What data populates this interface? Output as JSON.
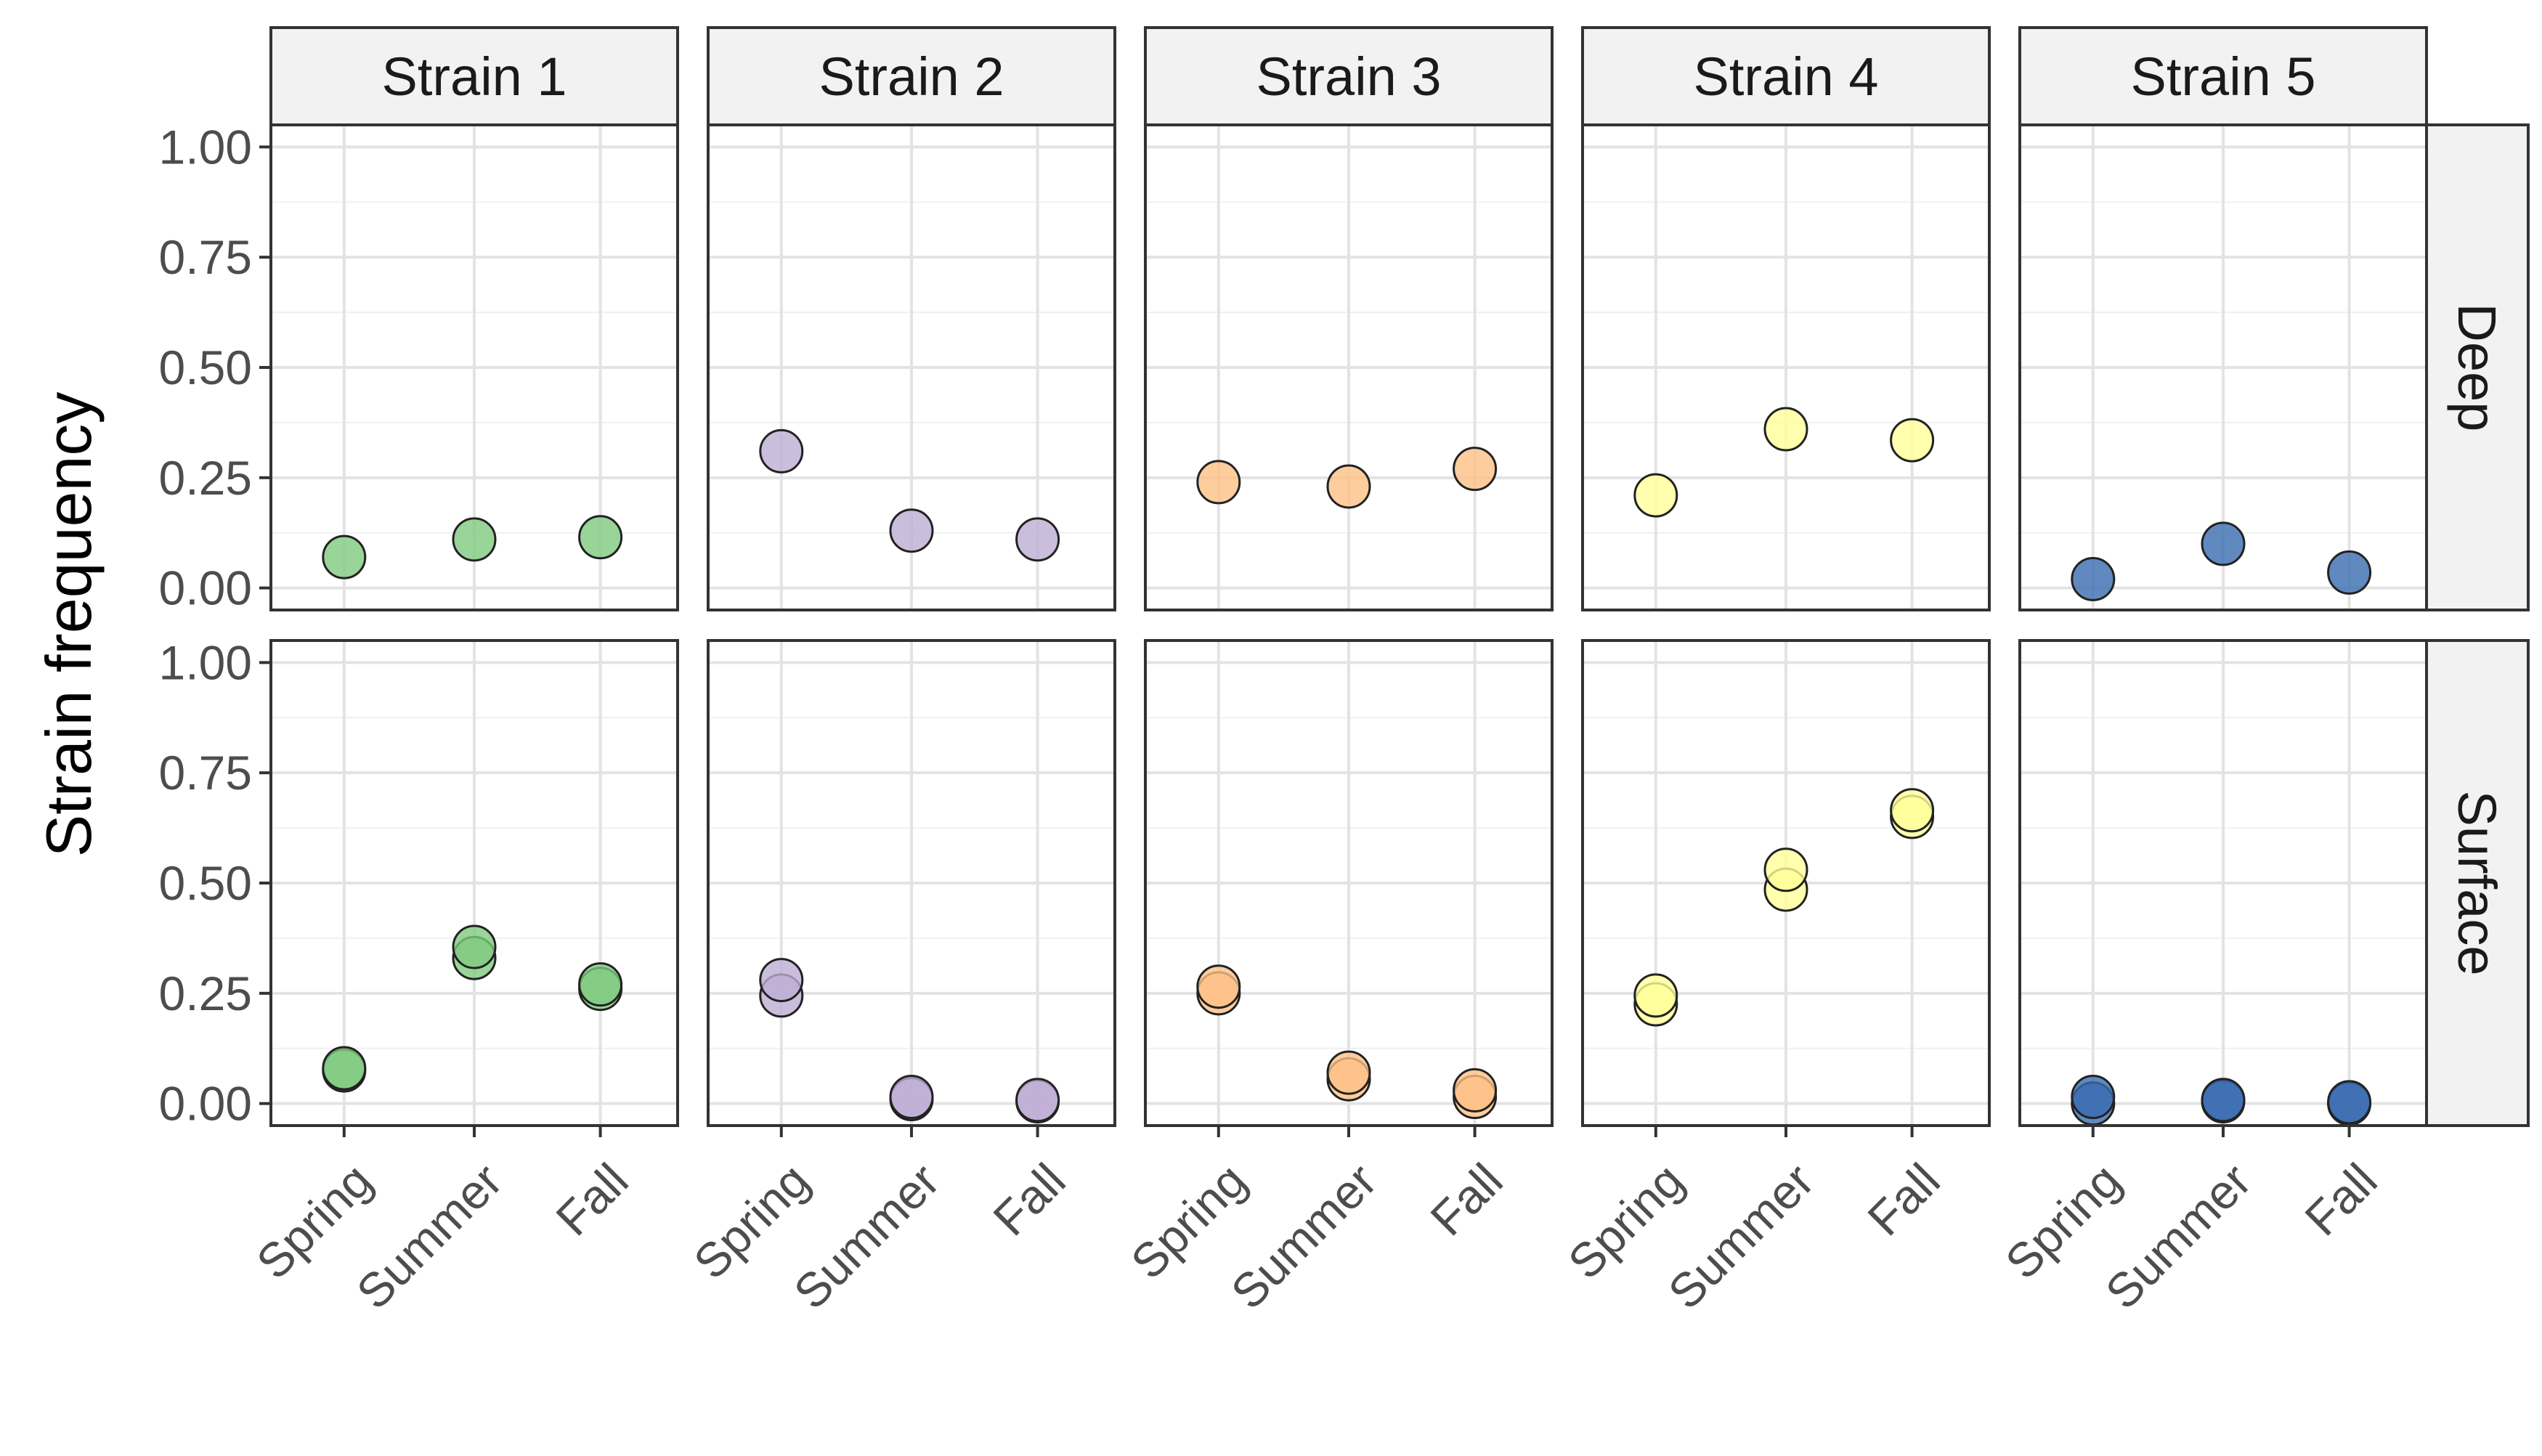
{
  "chart_data": {
    "type": "scatter",
    "facets": {
      "columns": [
        "Strain 1",
        "Strain 2",
        "Strain 3",
        "Strain 4",
        "Strain 5"
      ],
      "rows": [
        "Deep",
        "Surface"
      ]
    },
    "xlabel": "",
    "ylabel": "Strain frequency",
    "categories": [
      "Spring",
      "Summer",
      "Fall"
    ],
    "ylim": [
      -0.05,
      1.05
    ],
    "yticks": [
      "0.00",
      "0.25",
      "0.50",
      "0.75",
      "1.00"
    ],
    "ytick_values": [
      0,
      0.25,
      0.5,
      0.75,
      1.0
    ],
    "grid": true,
    "legend": "none",
    "colors": {
      "Strain 1": "#7fc97f",
      "Strain 2": "#beaed4",
      "Strain 3": "#fdc086",
      "Strain 4": "#ffff99",
      "Strain 5": "#386cb0"
    },
    "points": {
      "Deep": {
        "Strain 1": {
          "Spring": [
            0.07
          ],
          "Summer": [
            0.11
          ],
          "Fall": [
            0.115
          ]
        },
        "Strain 2": {
          "Spring": [
            0.31
          ],
          "Summer": [
            0.13
          ],
          "Fall": [
            0.11
          ]
        },
        "Strain 3": {
          "Spring": [
            0.24
          ],
          "Summer": [
            0.23
          ],
          "Fall": [
            0.27
          ]
        },
        "Strain 4": {
          "Spring": [
            0.21
          ],
          "Summer": [
            0.36
          ],
          "Fall": [
            0.335
          ]
        },
        "Strain 5": {
          "Spring": [
            0.02
          ],
          "Summer": [
            0.1
          ],
          "Fall": [
            0.035
          ]
        }
      },
      "Surface": {
        "Strain 1": {
          "Spring": [
            0.075,
            0.08
          ],
          "Summer": [
            0.33,
            0.355
          ],
          "Fall": [
            0.26,
            0.27
          ]
        },
        "Strain 2": {
          "Spring": [
            0.245,
            0.28
          ],
          "Summer": [
            0.01,
            0.015
          ],
          "Fall": [
            0.005,
            0.008
          ]
        },
        "Strain 3": {
          "Spring": [
            0.25,
            0.265
          ],
          "Summer": [
            0.055,
            0.07
          ],
          "Fall": [
            0.015,
            0.03
          ]
        },
        "Strain 4": {
          "Spring": [
            0.225,
            0.245
          ],
          "Summer": [
            0.485,
            0.53
          ],
          "Fall": [
            0.65,
            0.665
          ]
        },
        "Strain 5": {
          "Spring": [
            0.0,
            0.015
          ],
          "Summer": [
            0.005,
            0.008
          ],
          "Fall": [
            0.0,
            0.003
          ]
        }
      }
    }
  }
}
